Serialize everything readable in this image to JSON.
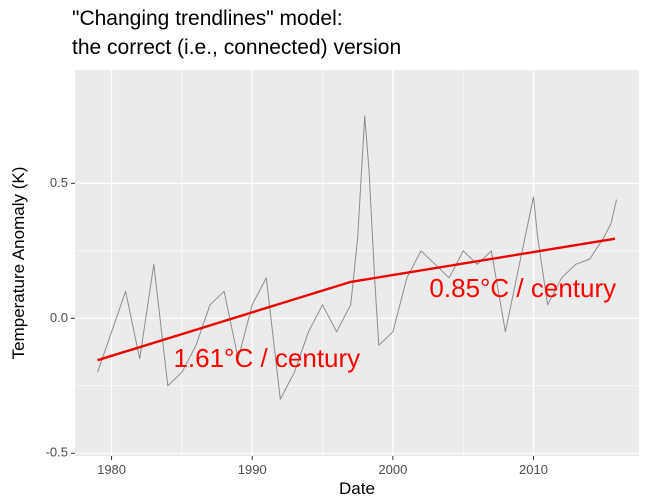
{
  "chart_data": {
    "type": "line",
    "title": "\"Changing trendlines\" model:",
    "subtitle": "the correct (i.e., connected) version",
    "xlabel": "Date",
    "ylabel": "Temperature Anomaly (K)",
    "xlim": [
      1977.4,
      2017.5
    ],
    "ylim": [
      -0.51,
      0.92
    ],
    "x_ticks": [
      1980,
      1990,
      2000,
      2010
    ],
    "x_tick_labels": [
      "1980",
      "1990",
      "2000",
      "2010"
    ],
    "y_ticks": [
      -0.5,
      0.0,
      0.5
    ],
    "y_tick_labels": [
      "-0.5",
      "0.0",
      "0.5"
    ],
    "grid": true,
    "legend": "none",
    "colors": {
      "panel_background": "#ebebeb",
      "grid_line": "#ffffff",
      "anomaly_series": "#8c8c8c",
      "trendline": "#ee0000",
      "annotation": "#ff0000"
    },
    "series": [
      {
        "role": "monthly-anomaly",
        "x": [
          1979.0,
          1980.0,
          1981.0,
          1982.0,
          1983.0,
          1984.0,
          1985.0,
          1986.0,
          1987.0,
          1988.0,
          1989.0,
          1990.0,
          1991.0,
          1992.0,
          1993.0,
          1994.0,
          1995.0,
          1996.0,
          1997.0,
          1997.5,
          1998.0,
          1998.3,
          1998.7,
          1999.0,
          2000.0,
          2001.0,
          2002.0,
          2003.0,
          2004.0,
          2005.0,
          2006.0,
          2007.0,
          2008.0,
          2009.0,
          2010.0,
          2010.3,
          2011.0,
          2012.0,
          2013.0,
          2014.0,
          2015.0,
          2015.5,
          2015.9
        ],
        "y": [
          -0.2,
          -0.05,
          0.1,
          -0.15,
          0.2,
          -0.25,
          -0.2,
          -0.1,
          0.05,
          0.1,
          -0.15,
          0.05,
          0.15,
          -0.3,
          -0.2,
          -0.05,
          0.05,
          -0.05,
          0.05,
          0.3,
          0.75,
          0.55,
          0.15,
          -0.1,
          -0.05,
          0.15,
          0.25,
          0.2,
          0.15,
          0.25,
          0.2,
          0.25,
          -0.05,
          0.2,
          0.45,
          0.3,
          0.05,
          0.15,
          0.2,
          0.22,
          0.3,
          0.35,
          0.44
        ]
      },
      {
        "role": "trendline",
        "x": [
          1979.0,
          1997.0,
          2015.8
        ],
        "y": [
          -0.155,
          0.135,
          0.295
        ]
      }
    ],
    "annotations": [
      {
        "text": "1.61°C / century",
        "x": 1984.4,
        "y": -0.155
      },
      {
        "text": "0.85°C / century",
        "x": 2002.6,
        "y": 0.105
      }
    ]
  }
}
